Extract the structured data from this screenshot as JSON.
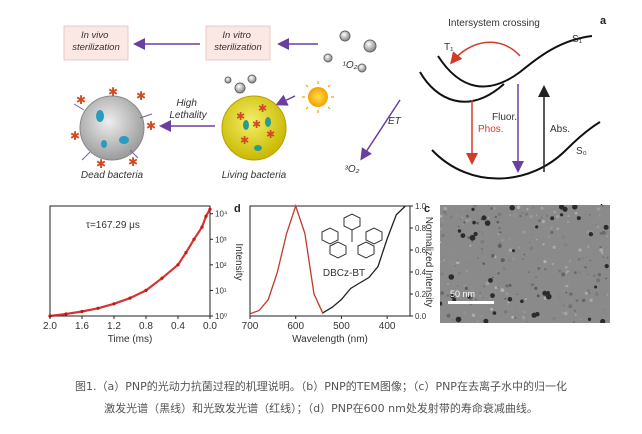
{
  "panel_labels": {
    "a": "a",
    "b": "b",
    "c": "c",
    "d": "d"
  },
  "panel_a": {
    "boxes": [
      "In vivo\nsterilization",
      "In vitro\nsterilization"
    ],
    "oxygen_species": [
      "¹O₂",
      "³O₂"
    ],
    "high_lethality": "High\nLethality",
    "dead_bacteria": "Dead bacteria",
    "living_bacteria": "Living bacteria",
    "et": "ET",
    "isc": "Intersystem crossing",
    "t1": "T₁",
    "s1": "S₁",
    "s0": "S₀",
    "phos": "Phos.",
    "fluor": "Fluor.",
    "abs": "Abs."
  },
  "panel_b": {
    "scalebar": "50 nm"
  },
  "panel_c": {
    "xlabel": "Wavelength (nm)",
    "ylabel": "Normalized Intensity",
    "molecule": "DBCz-BT",
    "xticks": [
      "700",
      "600",
      "500",
      "400"
    ],
    "yticks": [
      "0.0",
      "0.2",
      "0.4",
      "0.6",
      "0.8",
      "1.0"
    ]
  },
  "panel_d": {
    "xlabel": "Time (ms)",
    "ylabel": "Intensity",
    "annotation": "τ=167.29 μs",
    "xticks": [
      "2.0",
      "1.6",
      "1.2",
      "0.8",
      "0.4",
      "0.0"
    ],
    "yticks": [
      "10⁰",
      "10¹",
      "10²",
      "10³",
      "10⁴"
    ]
  },
  "chart_data": [
    {
      "type": "line",
      "xlabel": "Wavelength (nm)",
      "ylabel": "Normalized Intensity",
      "xlim": [
        700,
        350
      ],
      "ylim": [
        0,
        1.0
      ],
      "series": [
        {
          "color": "#c0392b",
          "x": [
            540,
            560,
            580,
            600,
            620,
            640,
            660,
            680,
            700
          ],
          "y": [
            0.02,
            0.2,
            0.75,
            1.0,
            0.75,
            0.4,
            0.15,
            0.05,
            0.02
          ]
        },
        {
          "color": "#222222",
          "x": [
            360,
            380,
            400,
            420,
            440,
            460,
            480,
            500,
            520,
            540
          ],
          "y": [
            1.0,
            0.92,
            0.7,
            0.45,
            0.35,
            0.3,
            0.25,
            0.15,
            0.08,
            0.03
          ]
        }
      ]
    },
    {
      "type": "scatter",
      "xlabel": "Time (ms)",
      "ylabel": "Intensity",
      "xlim": [
        2.0,
        0.0
      ],
      "yscale": "log",
      "ylim": [
        1,
        20000
      ],
      "series": [
        {
          "color": "#cc1111",
          "x": [
            2.0,
            1.8,
            1.6,
            1.4,
            1.2,
            1.0,
            0.8,
            0.6,
            0.4,
            0.3,
            0.2,
            0.1,
            0.05,
            0.0
          ],
          "y": [
            1,
            1.2,
            1.5,
            2,
            3,
            5,
            10,
            30,
            100,
            300,
            1000,
            3000,
            8000,
            15000
          ]
        }
      ]
    }
  ],
  "caption": {
    "line1": "图1.（a）PNP的光动力抗菌过程的机理说明。（b）PNP的TEM图像；（c）PNP在去离子水中的归一化",
    "line2": "激发光谱（黑线）和光致发光谱（红线）；（d）PNP在600 nm处发射带的寿命衰减曲线。"
  }
}
